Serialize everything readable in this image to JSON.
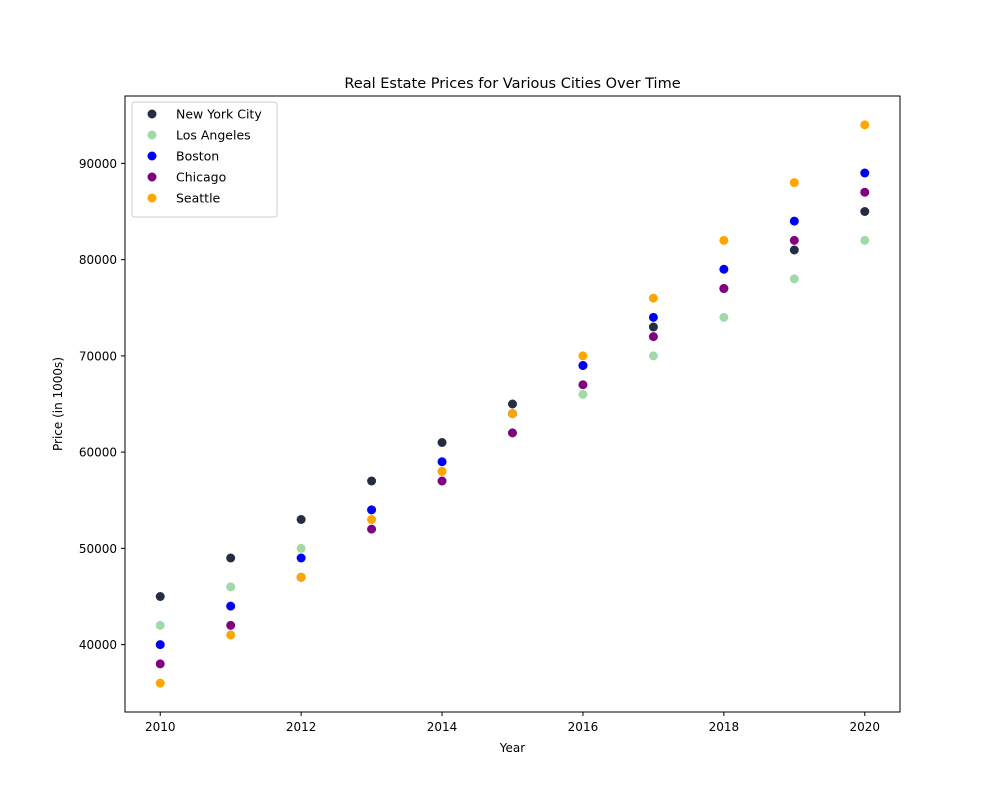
{
  "chart_data": {
    "type": "scatter",
    "title": "Real Estate Prices for Various Cities Over Time",
    "xlabel": "Year",
    "ylabel": "Price (in 1000s)",
    "x": [
      2010,
      2011,
      2012,
      2013,
      2014,
      2015,
      2016,
      2017,
      2018,
      2019,
      2020
    ],
    "xlim": [
      2009.5,
      2020.5
    ],
    "ylim": [
      33000,
      97000
    ],
    "xticks": [
      2010,
      2012,
      2014,
      2016,
      2018,
      2020
    ],
    "yticks": [
      40000,
      50000,
      60000,
      70000,
      80000,
      90000
    ],
    "grid": false,
    "legend_position": "top-left",
    "series": [
      {
        "name": "New York City",
        "color": "#262d42",
        "values": [
          45000,
          49000,
          53000,
          57000,
          61000,
          65000,
          69000,
          73000,
          77000,
          81000,
          85000
        ]
      },
      {
        "name": "Los Angeles",
        "color": "#a1d9a9",
        "values": [
          42000,
          46000,
          50000,
          54000,
          58000,
          62000,
          66000,
          70000,
          74000,
          78000,
          82000
        ]
      },
      {
        "name": "Boston",
        "color": "#0000f5",
        "values": [
          40000,
          44000,
          49000,
          54000,
          59000,
          64000,
          69000,
          74000,
          79000,
          84000,
          89000
        ]
      },
      {
        "name": "Chicago",
        "color": "#800080",
        "values": [
          38000,
          42000,
          47000,
          52000,
          57000,
          62000,
          67000,
          72000,
          77000,
          82000,
          87000
        ]
      },
      {
        "name": "Seattle",
        "color": "#ffa500",
        "values": [
          36000,
          41000,
          47000,
          53000,
          58000,
          64000,
          70000,
          76000,
          82000,
          88000,
          94000
        ]
      }
    ]
  }
}
